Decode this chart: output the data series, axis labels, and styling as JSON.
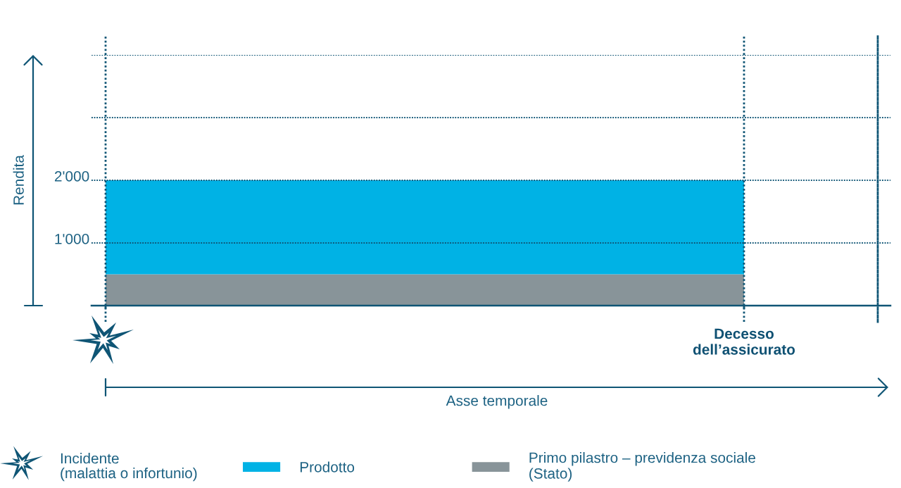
{
  "chart_data": {
    "type": "bar",
    "stacked": true,
    "ylabel": "Rendita",
    "categories": [
      null,
      "Decesso\ndell’assicurato"
    ],
    "series": [
      {
        "name": "Primo pilastro – previdenza sociale\n(Stato)",
        "color": "#889499",
        "values": [
          500,
          null
        ]
      },
      {
        "name": "Prodotto",
        "color": "#00b2e5",
        "values": [
          1500,
          null
        ]
      }
    ],
    "ylim": [
      0,
      4000
    ],
    "yticks": [
      {
        "value": 1000,
        "label": "1'000"
      },
      {
        "value": 2000,
        "label": "2'000"
      },
      {
        "value": 3000,
        "label": null
      },
      {
        "value": 4000,
        "label": null
      }
    ],
    "grid": true,
    "legend": "bottom",
    "annotations": [
      "Incidente\n(malattia o infortunio)",
      "Asse temporale"
    ]
  }
}
